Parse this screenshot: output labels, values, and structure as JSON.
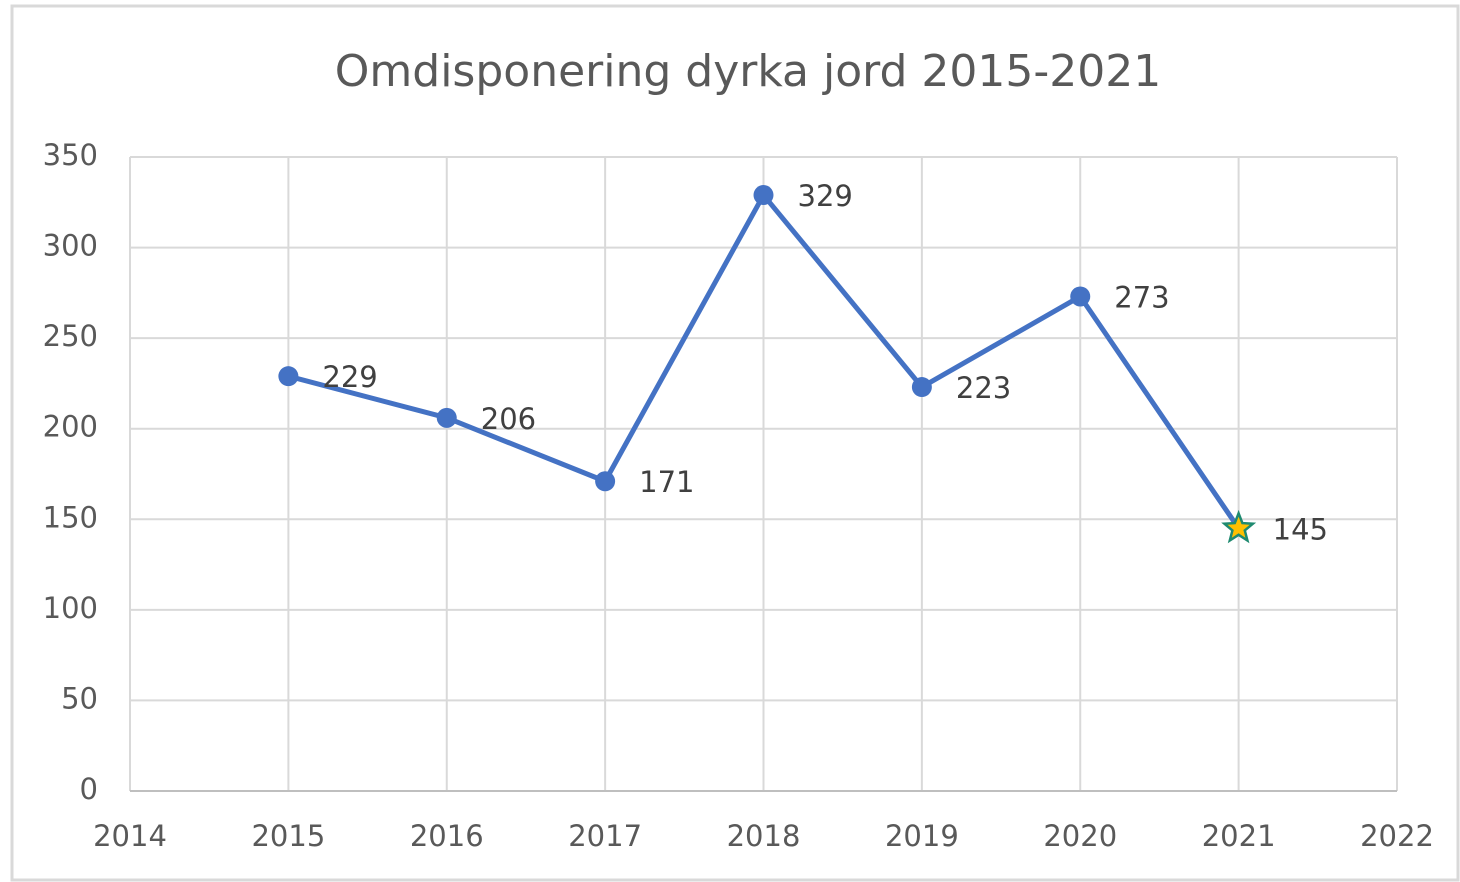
{
  "chart_data": {
    "type": "line",
    "title": "Omdisponering dyrka jord 2015-2021",
    "x": [
      2015,
      2016,
      2017,
      2018,
      2019,
      2020,
      2021
    ],
    "series": [
      {
        "name": "Omdisponering dyrka jord",
        "color": "#4472c4",
        "values": [
          229,
          206,
          171,
          329,
          223,
          273,
          145
        ]
      }
    ],
    "xlim": [
      2014,
      2022
    ],
    "xticks": [
      2014,
      2015,
      2016,
      2017,
      2018,
      2019,
      2020,
      2021,
      2022
    ],
    "ylim": [
      0,
      350
    ],
    "yticks": [
      0,
      50,
      100,
      150,
      200,
      250,
      300,
      350
    ],
    "grid": true,
    "data_labels": true,
    "highlight": {
      "index": 6,
      "marker": "star",
      "fill": "#ffc000",
      "stroke": "#1f8a70"
    }
  }
}
